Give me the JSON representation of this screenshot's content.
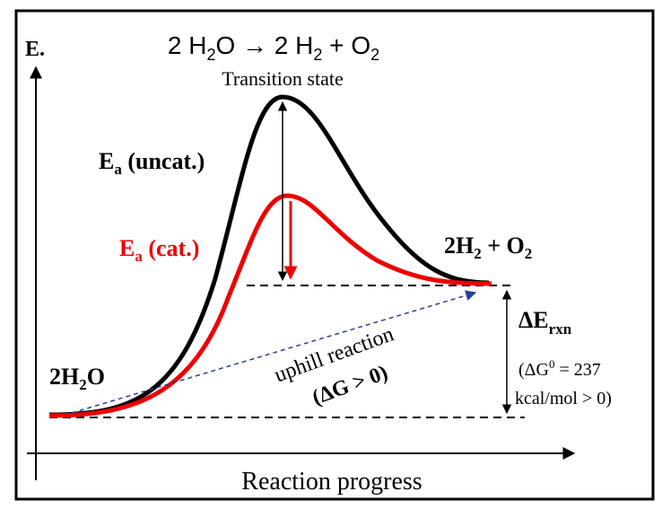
{
  "axes": {
    "y_label": "E.",
    "x_label": "Reaction progress"
  },
  "equation": [
    "2 H",
    "2",
    "O → 2 H",
    "2",
    " + O",
    "2"
  ],
  "transition_state": "Transition state",
  "ea_uncat": [
    "E",
    "a",
    " (uncat.)"
  ],
  "ea_cat": [
    "E",
    "a",
    " (cat.)"
  ],
  "products": [
    "2H",
    "2",
    " + O",
    "2"
  ],
  "reactants": [
    "2H",
    "2",
    "O"
  ],
  "delta_e": [
    "ΔE",
    "rxn"
  ],
  "delta_g_note": {
    "line1": [
      "(ΔG",
      "0",
      " = 237"
    ],
    "line2": "kcal/mol > 0)"
  },
  "uphill": {
    "line1": "uphill reaction",
    "line2": "(ΔG > 0)"
  }
}
